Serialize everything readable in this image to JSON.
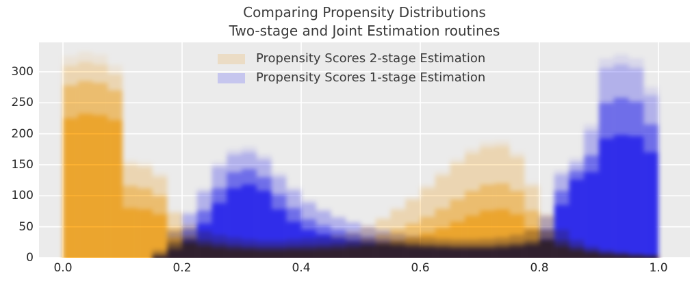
{
  "title": {
    "line1": "Comparing Propensity Distributions",
    "line2": "Two-stage and Joint Estimation routines"
  },
  "legend": [
    {
      "label": "Propensity Scores 2-stage Estimation",
      "swatch_color": "#ebdcc5"
    },
    {
      "label": "Propensity Scores 1-stage Estimation",
      "swatch_color": "#c6c6ee"
    }
  ],
  "axes": {
    "x_ticks": [
      "0.0",
      "0.2",
      "0.4",
      "0.6",
      "0.8",
      "1.0"
    ],
    "x_tick_values": [
      0,
      0.2,
      0.4,
      0.6,
      0.8,
      1.0
    ],
    "y_ticks": [
      "0",
      "50",
      "100",
      "150",
      "200",
      "250",
      "300"
    ],
    "y_tick_values": [
      0,
      50,
      100,
      150,
      200,
      250,
      300
    ],
    "x_range": [
      0,
      1
    ],
    "y_range": [
      0,
      347
    ],
    "grid": true,
    "legend_position": "upper center"
  },
  "colors": {
    "plot_bg": "#ebebeb",
    "grid": "#ffffff",
    "title_text": "#3a3a3a",
    "tick_text": "#262626"
  },
  "chart_data": {
    "type": "histogram",
    "note_overlay": "many semi-transparent overlaid histogram draws per series; heights_solid = dense core envelope, heights_mid = middle envelope, heights_max = faint upper envelope",
    "bin_start": 0.0,
    "bin_width": 0.025,
    "series": [
      {
        "name": "Propensity Scores 2-stage Estimation",
        "color": "#ffb330",
        "perceived_solid_color": "#f0a52c",
        "blend": "multiply",
        "heights_solid": [
          225,
          232,
          230,
          222,
          80,
          78,
          70,
          32,
          24,
          19,
          16,
          14,
          13,
          12,
          12,
          13,
          13,
          14,
          15,
          17,
          20,
          24,
          28,
          33,
          40,
          48,
          58,
          68,
          76,
          78,
          70,
          48,
          28,
          18,
          12,
          8,
          5,
          4,
          3,
          2
        ],
        "heights_mid": [
          278,
          285,
          282,
          270,
          116,
          112,
          100,
          48,
          35,
          28,
          24,
          21,
          19,
          18,
          18,
          19,
          20,
          21,
          23,
          26,
          31,
          38,
          46,
          55,
          66,
          79,
          94,
          108,
          118,
          120,
          108,
          76,
          44,
          28,
          18,
          12,
          8,
          6,
          4,
          3
        ],
        "heights_max": [
          310,
          316,
          312,
          296,
          150,
          146,
          130,
          72,
          52,
          42,
          36,
          32,
          29,
          27,
          27,
          29,
          31,
          33,
          36,
          41,
          50,
          62,
          77,
          93,
          112,
          132,
          152,
          168,
          178,
          180,
          162,
          115,
          68,
          44,
          28,
          18,
          12,
          9,
          6,
          4
        ]
      },
      {
        "name": "Propensity Scores 1-stage Estimation",
        "color": "#2e2bea",
        "perceived_solid_color": "#2f2cee",
        "blend": "normal",
        "heights_solid": [
          0,
          0,
          0,
          0,
          0,
          0,
          2,
          14,
          30,
          55,
          88,
          112,
          118,
          108,
          78,
          58,
          45,
          38,
          32,
          28,
          25,
          22,
          20,
          18,
          17,
          16,
          15,
          15,
          15,
          16,
          18,
          21,
          30,
          85,
          126,
          138,
          192,
          198,
          196,
          170
        ],
        "heights_mid": [
          0,
          0,
          0,
          0,
          0,
          0,
          5,
          24,
          46,
          76,
          112,
          138,
          143,
          130,
          102,
          80,
          62,
          52,
          45,
          39,
          34,
          30,
          27,
          24,
          22,
          21,
          20,
          20,
          20,
          22,
          24,
          28,
          46,
          108,
          140,
          165,
          250,
          258,
          252,
          215
        ],
        "heights_max": [
          0,
          0,
          0,
          0,
          0,
          0,
          12,
          42,
          70,
          106,
          146,
          166,
          170,
          158,
          130,
          108,
          88,
          75,
          64,
          56,
          49,
          43,
          38,
          34,
          32,
          30,
          29,
          29,
          30,
          32,
          36,
          44,
          66,
          134,
          153,
          205,
          306,
          312,
          306,
          262
        ]
      }
    ]
  }
}
